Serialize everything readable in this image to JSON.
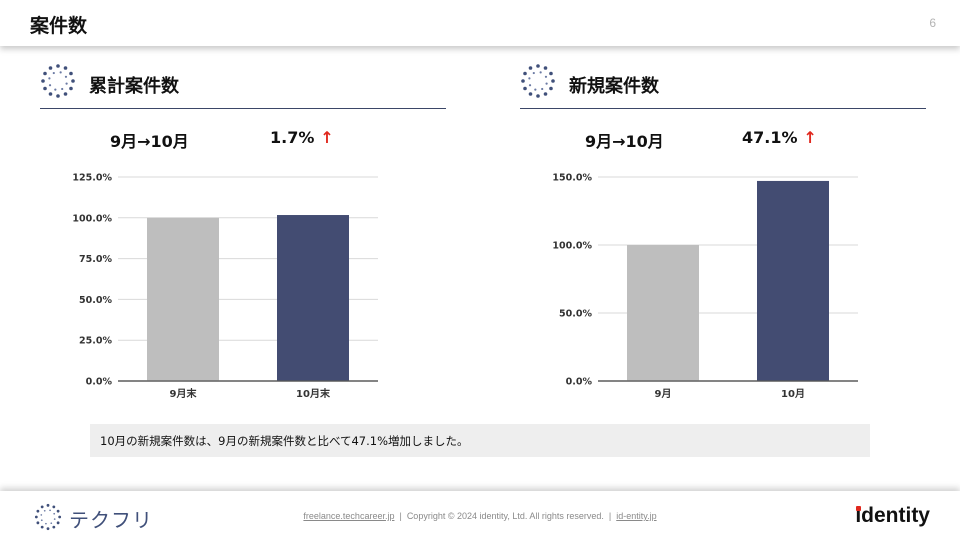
{
  "header": {
    "title": "案件数",
    "page_number": "6"
  },
  "colors": {
    "accent_navy": "#434c72",
    "bar_gray": "#bebebe",
    "up_arrow_red": "#e0281e",
    "note_bg": "#eeeeee"
  },
  "icons": {
    "section_logo": "dotted-circle-logo-icon",
    "up_arrow": "up-arrow-icon"
  },
  "sections": [
    {
      "title": "累計案件数",
      "period": "9月→10月",
      "change": "1.7%",
      "arrow": "↑",
      "chart_data": {
        "type": "bar",
        "categories": [
          "9月末",
          "10月末"
        ],
        "values": [
          100.0,
          101.7
        ],
        "ylim": [
          0,
          125
        ],
        "yticks": [
          "0.0%",
          "25.0%",
          "50.0%",
          "75.0%",
          "100.0%",
          "125.0%"
        ],
        "ytick_values": [
          0,
          25,
          50,
          75,
          100,
          125
        ],
        "bar_colors": [
          "#bebebe",
          "#434c72"
        ],
        "grid": true
      }
    },
    {
      "title": "新規案件数",
      "period": "9月→10月",
      "change": "47.1%",
      "arrow": "↑",
      "chart_data": {
        "type": "bar",
        "categories": [
          "9月",
          "10月"
        ],
        "values": [
          100.0,
          147.1
        ],
        "ylim": [
          0,
          150
        ],
        "yticks": [
          "0.0%",
          "50.0%",
          "100.0%",
          "150.0%"
        ],
        "ytick_values": [
          0,
          50,
          100,
          150
        ],
        "bar_colors": [
          "#bebebe",
          "#434c72"
        ],
        "grid": true
      }
    }
  ],
  "note": "10月の新規案件数は、9月の新規案件数と比べて47.1%増加しました。",
  "footer": {
    "brand": "テクフリ",
    "link1": "freelance.techcareer.jp",
    "separator": "|",
    "copyright": "Copyright © 2024 identity, Ltd. All rights reserved.",
    "link2": "id-entity.jp",
    "company_logo": "identity"
  }
}
